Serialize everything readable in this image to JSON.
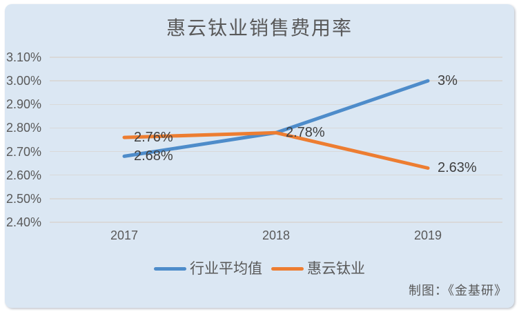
{
  "attribution": "制图：《金基研》",
  "colors": {
    "card_background": "#dbe7f3",
    "frame": "#ffffff",
    "gridline": "#d9d9d9",
    "axis_text": "#595959",
    "data_label_text": "#3f3f3f",
    "series_blue": "#4e8cca",
    "series_orange": "#ed7d31"
  },
  "chart_data": {
    "type": "line",
    "title": "惠云钛业销售费用率",
    "categories": [
      "2017",
      "2018",
      "2019"
    ],
    "series": [
      {
        "name": "行业平均值",
        "values": [
          2.68,
          2.78,
          3.0
        ],
        "labels": [
          "2.68%",
          "2.78%",
          "3%"
        ],
        "color": "#4e8cca"
      },
      {
        "name": "惠云钛业",
        "values": [
          2.76,
          2.78,
          2.63
        ],
        "labels": [
          "2.76%",
          null,
          "2.63%"
        ],
        "color": "#ed7d31"
      }
    ],
    "ylim": [
      2.4,
      3.1
    ],
    "yticks": [
      "3.10%",
      "3.00%",
      "2.90%",
      "2.80%",
      "2.70%",
      "2.60%",
      "2.50%",
      "2.40%"
    ],
    "xlabel": "",
    "ylabel": "",
    "grid": true,
    "legend_position": "bottom"
  }
}
